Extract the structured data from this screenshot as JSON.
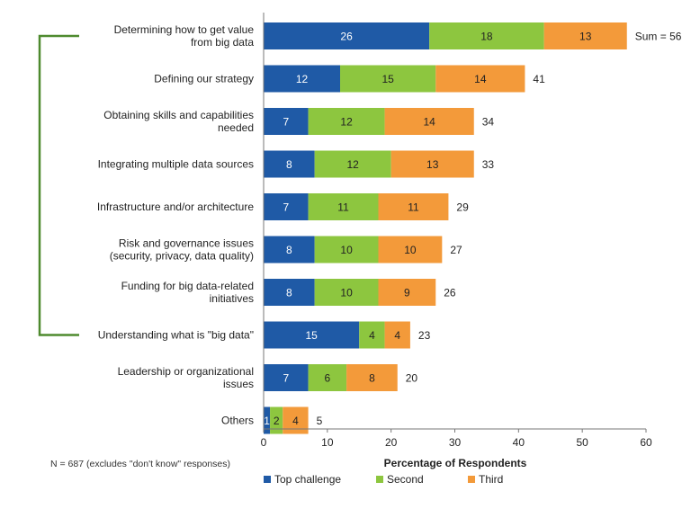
{
  "chart_data": {
    "type": "bar",
    "orientation": "horizontal",
    "stacked": true,
    "categories": [
      "Determining how to get value\nfrom big data",
      "Defining our strategy",
      "Obtaining skills and capabilities\nneeded",
      "Integrating multiple data sources",
      "Infrastructure and/or architecture",
      "Risk and governance issues\n(security, privacy, data quality)",
      "Funding for big data-related\ninitiatives",
      "Understanding what is \"big data\"",
      "Leadership or organizational\nissues",
      "Others"
    ],
    "series": [
      {
        "name": "Top challenge",
        "color": "#1f5aa6",
        "values": [
          26,
          12,
          7,
          8,
          7,
          8,
          8,
          15,
          7,
          1
        ]
      },
      {
        "name": "Second",
        "color": "#8dc63f",
        "values": [
          18,
          15,
          12,
          12,
          11,
          10,
          10,
          4,
          6,
          2
        ]
      },
      {
        "name": "Third",
        "color": "#f39a3a",
        "values": [
          13,
          14,
          14,
          13,
          11,
          10,
          9,
          4,
          8,
          4
        ]
      }
    ],
    "totals": [
      "Sum = 56",
      "41",
      "34",
      "33",
      "29",
      "27",
      "26",
      "23",
      "20",
      "5"
    ],
    "xlabel": "Percentage of Respondents",
    "xlim": [
      0,
      60
    ],
    "xticks": [
      0,
      10,
      20,
      30,
      40,
      50,
      60
    ],
    "grid": false,
    "legend_position": "bottom",
    "bracket_color": "#4e8a2e",
    "bracket_span": [
      "Determining how to get value\nfrom big data",
      "Understanding what is \"big data\""
    ]
  },
  "footnote": "N = 687 (excludes \"don't know\" responses)"
}
